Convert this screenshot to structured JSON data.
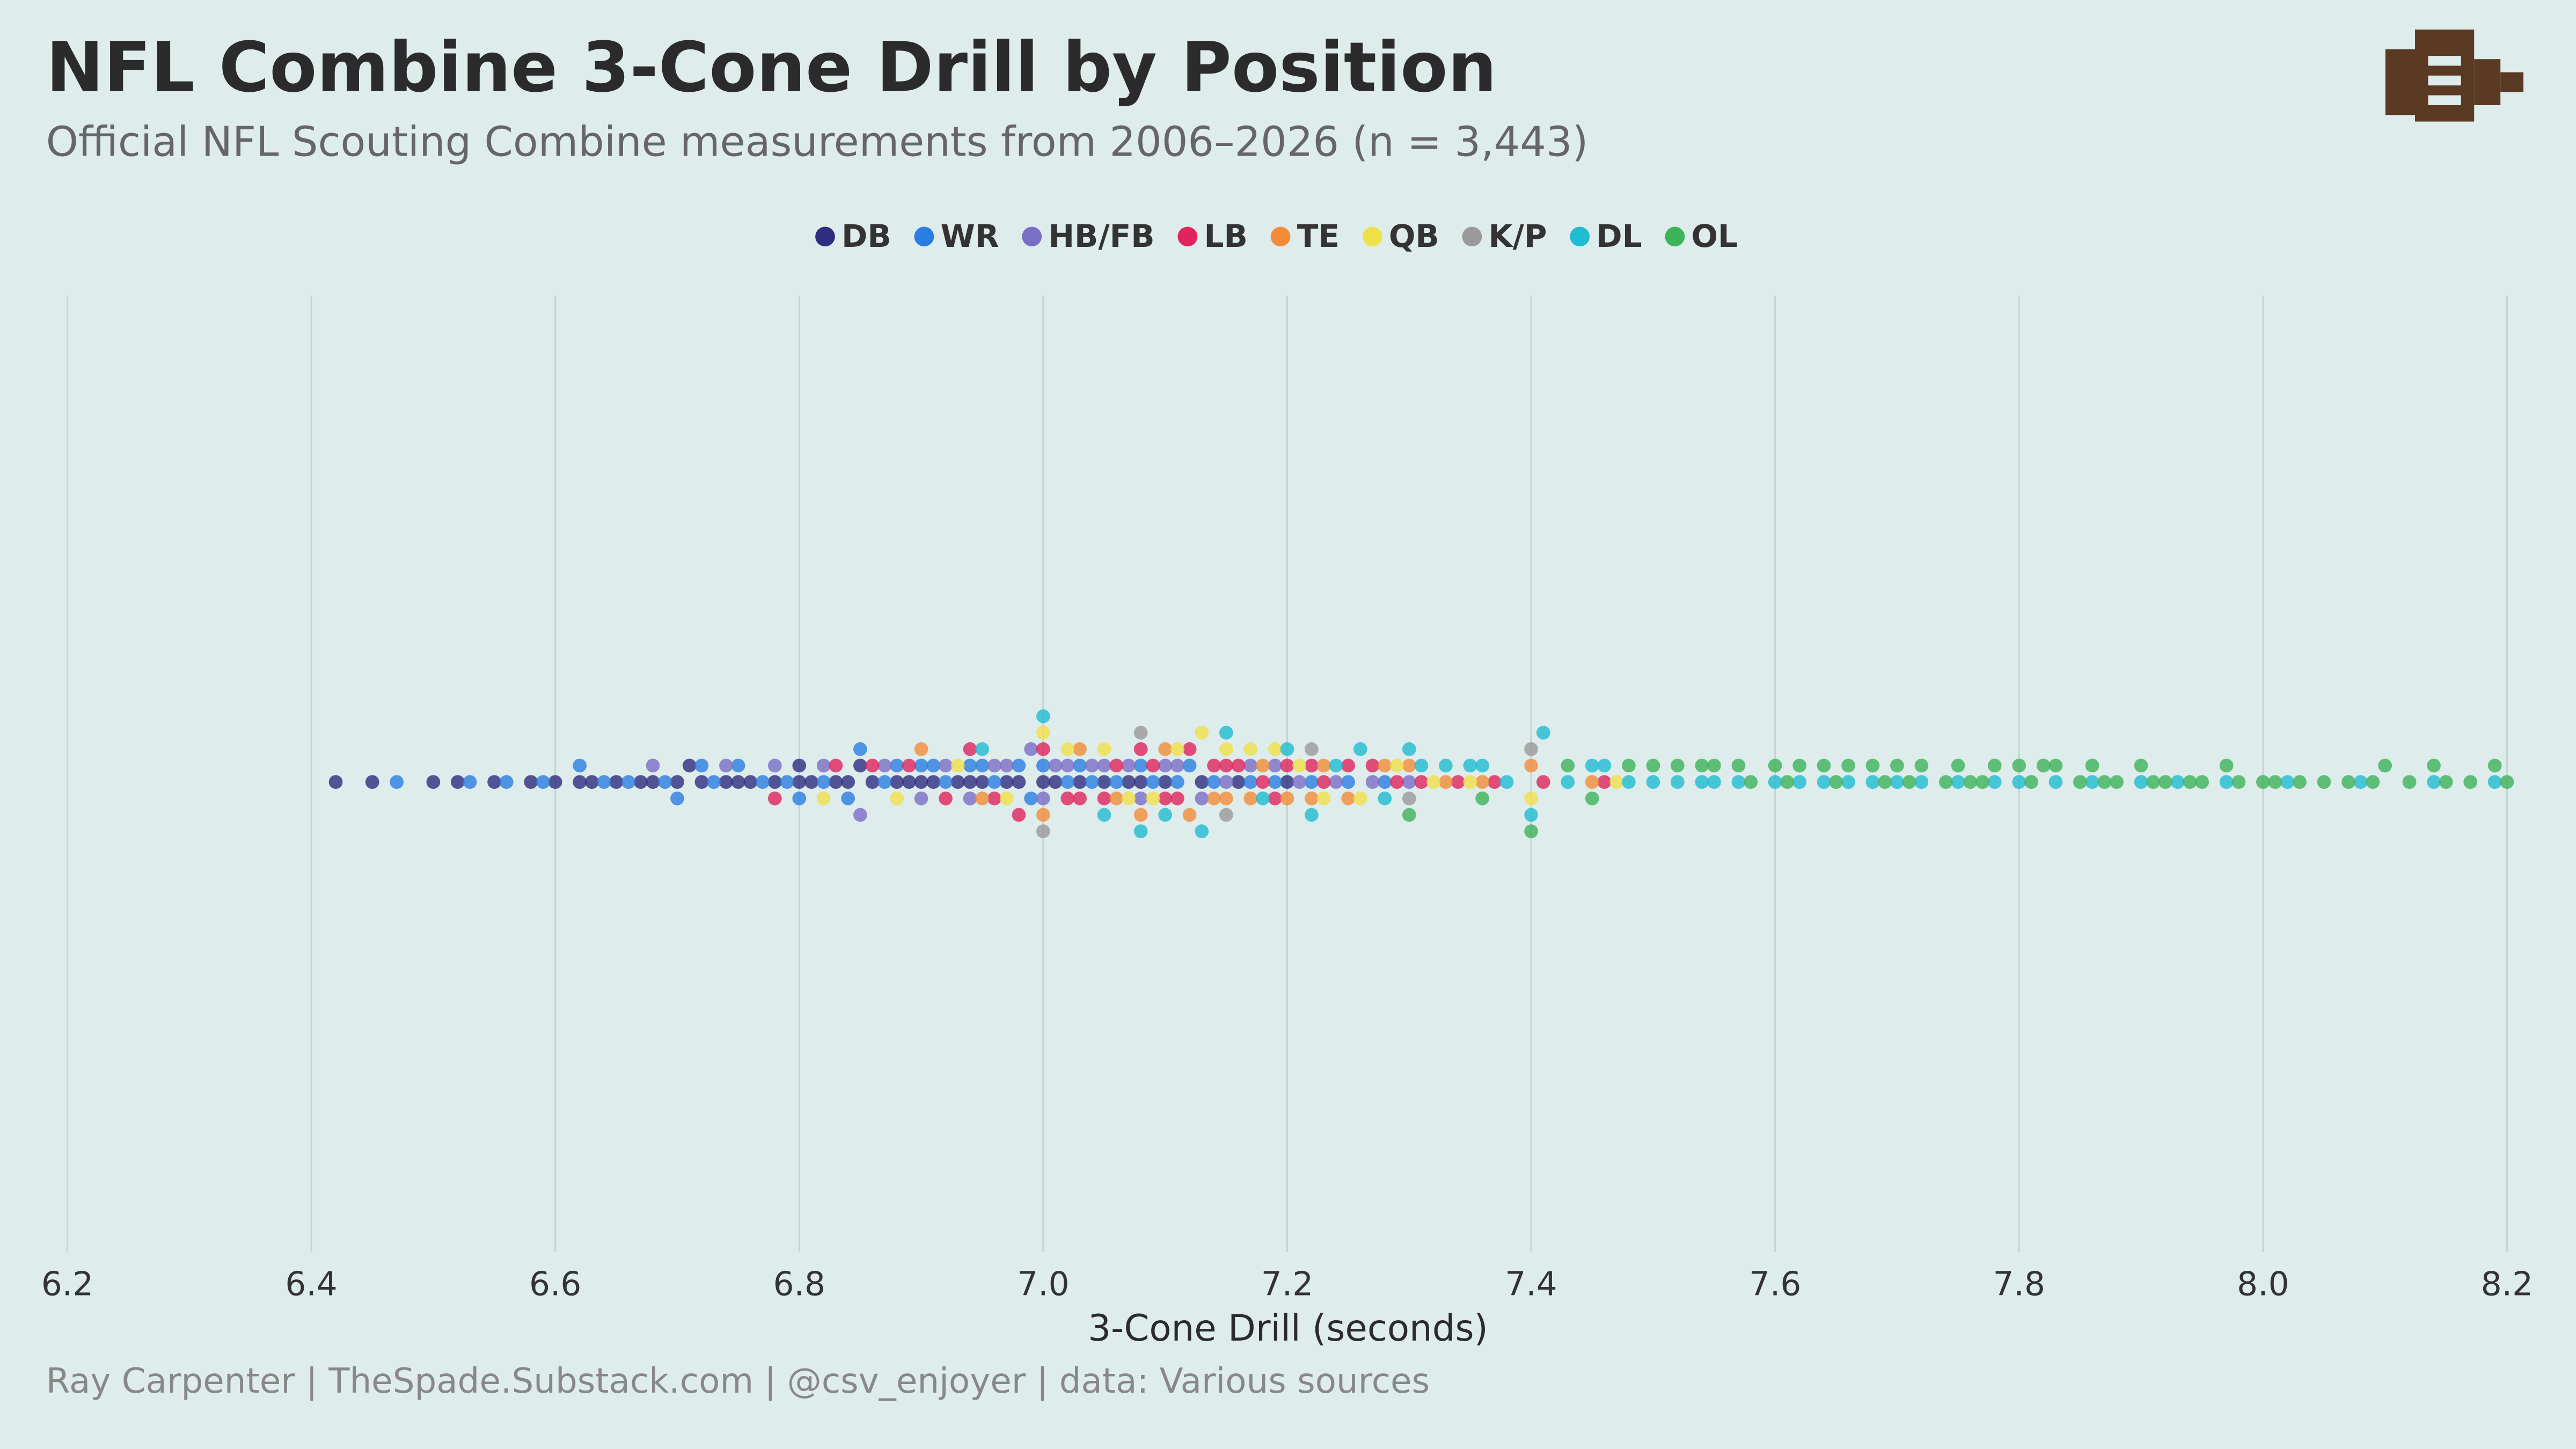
{
  "chart_data": {
    "type": "beeswarm",
    "title": "NFL Combine 3-Cone Drill by Position",
    "subtitle": "Official NFL Scouting Combine measurements from 2006–2026 (n = 3,443)",
    "x_label": "3-Cone Drill (seconds)",
    "caption": "Ray Carpenter | TheSpade.Substack.com | @csv_enjoyer | data: Various sources",
    "xlim": [
      6.2,
      8.2
    ],
    "xticks": [
      6.2,
      6.4,
      6.6,
      6.8,
      {
        "value": 7,
        "label": "7.0"
      },
      7.2,
      7.4,
      7.6,
      7.8,
      {
        "value": 8,
        "label": "8.0"
      },
      8.2
    ],
    "grid": true,
    "legend": "top",
    "series": [
      {
        "name": "DB",
        "color": "#2e2d7f",
        "values": [
          6.42,
          6.45,
          6.5,
          6.52,
          6.55,
          6.58,
          6.6,
          6.62,
          6.63,
          6.65,
          6.67,
          6.68,
          6.7,
          6.71,
          6.72,
          6.74,
          6.75,
          6.76,
          6.78,
          6.8,
          6.8,
          6.81,
          6.83,
          6.84,
          6.85,
          6.86,
          6.88,
          6.89,
          6.9,
          6.91,
          6.93,
          6.94,
          6.95,
          6.97,
          6.98,
          7.0,
          7.01,
          7.03,
          7.05,
          7.07,
          7.08,
          7.1,
          7.13,
          7.16,
          7.2
        ]
      },
      {
        "name": "WR",
        "color": "#2a7de1",
        "values": [
          6.47,
          6.53,
          6.56,
          6.59,
          6.62,
          6.64,
          6.66,
          6.69,
          6.7,
          6.72,
          6.73,
          6.75,
          6.77,
          6.79,
          6.8,
          6.82,
          6.84,
          6.85,
          6.87,
          6.88,
          6.9,
          6.91,
          6.92,
          6.94,
          6.95,
          6.96,
          6.98,
          6.99,
          7.0,
          7.02,
          7.03,
          7.04,
          7.06,
          7.08,
          7.09,
          7.11,
          7.12,
          7.14,
          7.17,
          7.19,
          7.22,
          7.25,
          7.28
        ]
      },
      {
        "name": "HB/FB",
        "color": "#7b6ec6",
        "values": [
          6.68,
          6.74,
          6.78,
          6.82,
          6.85,
          6.87,
          6.9,
          6.92,
          6.94,
          6.96,
          6.97,
          6.99,
          7.0,
          7.01,
          7.02,
          7.04,
          7.05,
          7.07,
          7.08,
          7.1,
          7.11,
          7.13,
          7.15,
          7.17,
          7.19,
          7.21,
          7.24,
          7.27,
          7.3
        ]
      },
      {
        "name": "LB",
        "color": "#e0245e",
        "values": [
          6.78,
          6.83,
          6.86,
          6.89,
          6.92,
          6.94,
          6.96,
          6.98,
          7.0,
          7.02,
          7.03,
          7.05,
          7.06,
          7.08,
          7.09,
          7.1,
          7.11,
          7.12,
          7.14,
          7.15,
          7.16,
          7.18,
          7.19,
          7.2,
          7.22,
          7.23,
          7.25,
          7.27,
          7.29,
          7.31,
          7.34,
          7.37,
          7.41,
          7.46
        ]
      },
      {
        "name": "TE",
        "color": "#f28c38",
        "values": [
          6.9,
          6.95,
          7.0,
          7.03,
          7.06,
          7.08,
          7.1,
          7.12,
          7.14,
          7.15,
          7.17,
          7.18,
          7.2,
          7.22,
          7.23,
          7.25,
          7.28,
          7.3,
          7.33,
          7.36,
          7.4,
          7.45
        ]
      },
      {
        "name": "QB",
        "color": "#f0e04a",
        "values": [
          6.82,
          6.88,
          6.93,
          6.97,
          7.0,
          7.02,
          7.05,
          7.07,
          7.09,
          7.11,
          7.13,
          7.15,
          7.17,
          7.19,
          7.21,
          7.23,
          7.26,
          7.29,
          7.32,
          7.35,
          7.4,
          7.47
        ]
      },
      {
        "name": "K/P",
        "color": "#9a9a9a",
        "values": [
          7.0,
          7.08,
          7.15,
          7.22,
          7.3,
          7.4
        ]
      },
      {
        "name": "DL",
        "color": "#1fbcd2",
        "values": [
          6.95,
          7.0,
          7.05,
          7.08,
          7.1,
          7.13,
          7.15,
          7.18,
          7.2,
          7.22,
          7.24,
          7.26,
          7.28,
          7.3,
          7.31,
          7.33,
          7.35,
          7.36,
          7.38,
          7.4,
          7.41,
          7.43,
          7.45,
          7.46,
          7.48,
          7.5,
          7.52,
          7.54,
          7.55,
          7.57,
          7.6,
          7.62,
          7.64,
          7.66,
          7.68,
          7.7,
          7.72,
          7.75,
          7.78,
          7.8,
          7.83,
          7.86,
          7.9,
          7.93,
          7.97,
          8.02,
          8.08,
          8.14,
          8.19
        ]
      },
      {
        "name": "OL",
        "color": "#3db35a",
        "values": [
          7.3,
          7.36,
          7.4,
          7.43,
          7.45,
          7.48,
          7.5,
          7.52,
          7.54,
          7.55,
          7.57,
          7.58,
          7.6,
          7.61,
          7.62,
          7.64,
          7.65,
          7.66,
          7.68,
          7.69,
          7.7,
          7.71,
          7.72,
          7.74,
          7.75,
          7.76,
          7.77,
          7.78,
          7.8,
          7.81,
          7.82,
          7.83,
          7.85,
          7.86,
          7.87,
          7.88,
          7.9,
          7.91,
          7.92,
          7.94,
          7.95,
          7.97,
          7.98,
          8.0,
          8.01,
          8.03,
          8.05,
          8.07,
          8.09,
          8.1,
          8.12,
          8.14,
          8.15,
          8.17,
          8.19,
          8.2
        ]
      }
    ]
  }
}
